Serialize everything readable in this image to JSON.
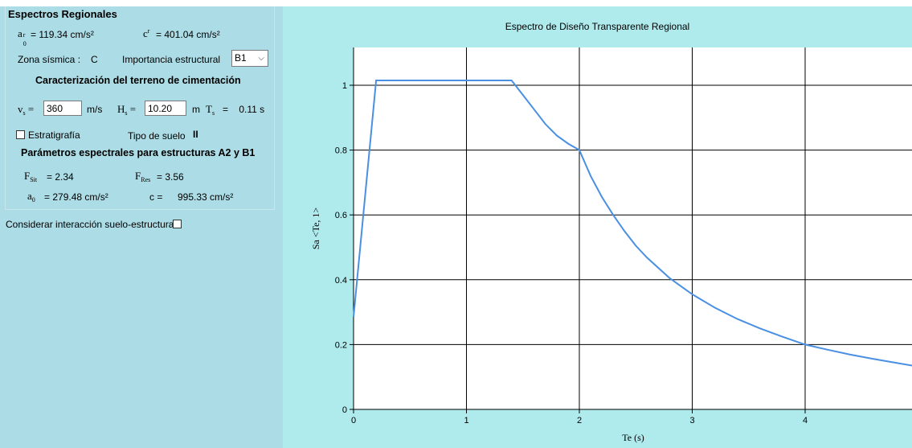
{
  "left": {
    "group_title": "Espectros Regionales",
    "a0r": {
      "label": "a",
      "sub": "0",
      "sup": "r",
      "value": "= 119.34 cm/s²"
    },
    "cr": {
      "label": "c",
      "sup": "r",
      "value": "= 401.04 cm/s²"
    },
    "zona_label": "Zona sísmica :",
    "zona_value": "C",
    "importancia_label": "Importancia estructural",
    "importancia_value": "B1",
    "terreno_title": "Caracterización del terreno de cimentación",
    "vs": {
      "label": "v",
      "sub": "s",
      "eq": "=",
      "value": "360",
      "unit": "m/s"
    },
    "hs": {
      "label": "H",
      "sub": "s",
      "eq": "=",
      "value": "10.20",
      "unit": "m"
    },
    "ts": {
      "label": "T",
      "sub": "s",
      "value": "=    0.11 s"
    },
    "estratigrafia_label": "Estratigrafía",
    "tipo_suelo_label": "Tipo de suelo",
    "tipo_suelo_value": "II",
    "param_title": "Parámetros espectrales para estructuras A2 y B1",
    "fsit": {
      "label": "F",
      "sub": "Sit",
      "value": "= 2.34"
    },
    "fres": {
      "label": "F",
      "sub": "Res",
      "value": "= 3.56"
    },
    "a0": {
      "label": "a",
      "sub": "0",
      "value": "= 279.48 cm/s²"
    },
    "c": {
      "label": "c =",
      "value": "995.33 cm/s²"
    },
    "interaccion_label": "Considerar interacción suelo-estructura"
  },
  "chart_data": {
    "type": "line",
    "title": "Espectro de Diseño Transparente Regional",
    "xlabel": "Te (s)",
    "ylabel": "Sa <Te, 1>",
    "xlim": [
      0,
      5
    ],
    "ylim": [
      0,
      1.1
    ],
    "x_ticks": [
      0,
      1,
      2,
      3,
      4
    ],
    "y_ticks": [
      0,
      0.2,
      0.4,
      0.6,
      0.8,
      1
    ],
    "grid": true,
    "series": [
      {
        "color": "#4a90e2",
        "x": [
          0,
          0.2,
          1.4,
          1.5,
          1.6,
          1.7,
          1.8,
          1.9,
          2.0,
          2.1,
          2.2,
          2.3,
          2.4,
          2.5,
          2.6,
          2.8,
          3.0,
          3.2,
          3.4,
          3.6,
          3.8,
          4.0,
          4.2,
          4.4,
          4.6,
          4.8,
          4.95
        ],
        "y": [
          0.285,
          1.015,
          1.015,
          0.97,
          0.925,
          0.88,
          0.845,
          0.82,
          0.8,
          0.72,
          0.655,
          0.6,
          0.55,
          0.505,
          0.468,
          0.405,
          0.355,
          0.314,
          0.279,
          0.25,
          0.224,
          0.2,
          0.184,
          0.169,
          0.156,
          0.144,
          0.135
        ]
      }
    ]
  }
}
